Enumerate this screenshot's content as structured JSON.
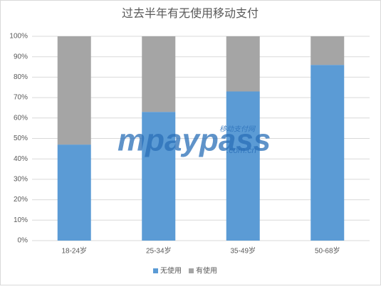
{
  "chart_data": {
    "type": "stacked_bar",
    "title": "过去半年有无使用移动支付",
    "categories": [
      "18-24岁",
      "25-34岁",
      "35-49岁",
      "50-68岁"
    ],
    "series": [
      {
        "name": "无使用",
        "color": "#5b9bd5",
        "values": [
          47,
          63,
          73,
          86
        ]
      },
      {
        "name": "有使用",
        "color": "#a5a5a5",
        "values": [
          53,
          37,
          27,
          14
        ]
      }
    ],
    "ylim": [
      0,
      100
    ],
    "yticks": [
      {
        "value": 0,
        "label": "0%"
      },
      {
        "value": 10,
        "label": "10%"
      },
      {
        "value": 20,
        "label": "20%"
      },
      {
        "value": 30,
        "label": "30%"
      },
      {
        "value": 40,
        "label": "40%"
      },
      {
        "value": 50,
        "label": "50%"
      },
      {
        "value": 60,
        "label": "60%"
      },
      {
        "value": 70,
        "label": "70%"
      },
      {
        "value": 80,
        "label": "80%"
      },
      {
        "value": 90,
        "label": "90%"
      },
      {
        "value": 100,
        "label": "100%"
      }
    ],
    "grid": true,
    "legend": "bottom",
    "watermark": {
      "brand": "mpaypass",
      "cn": "移动支付网",
      "domain": ".com.cn"
    }
  }
}
